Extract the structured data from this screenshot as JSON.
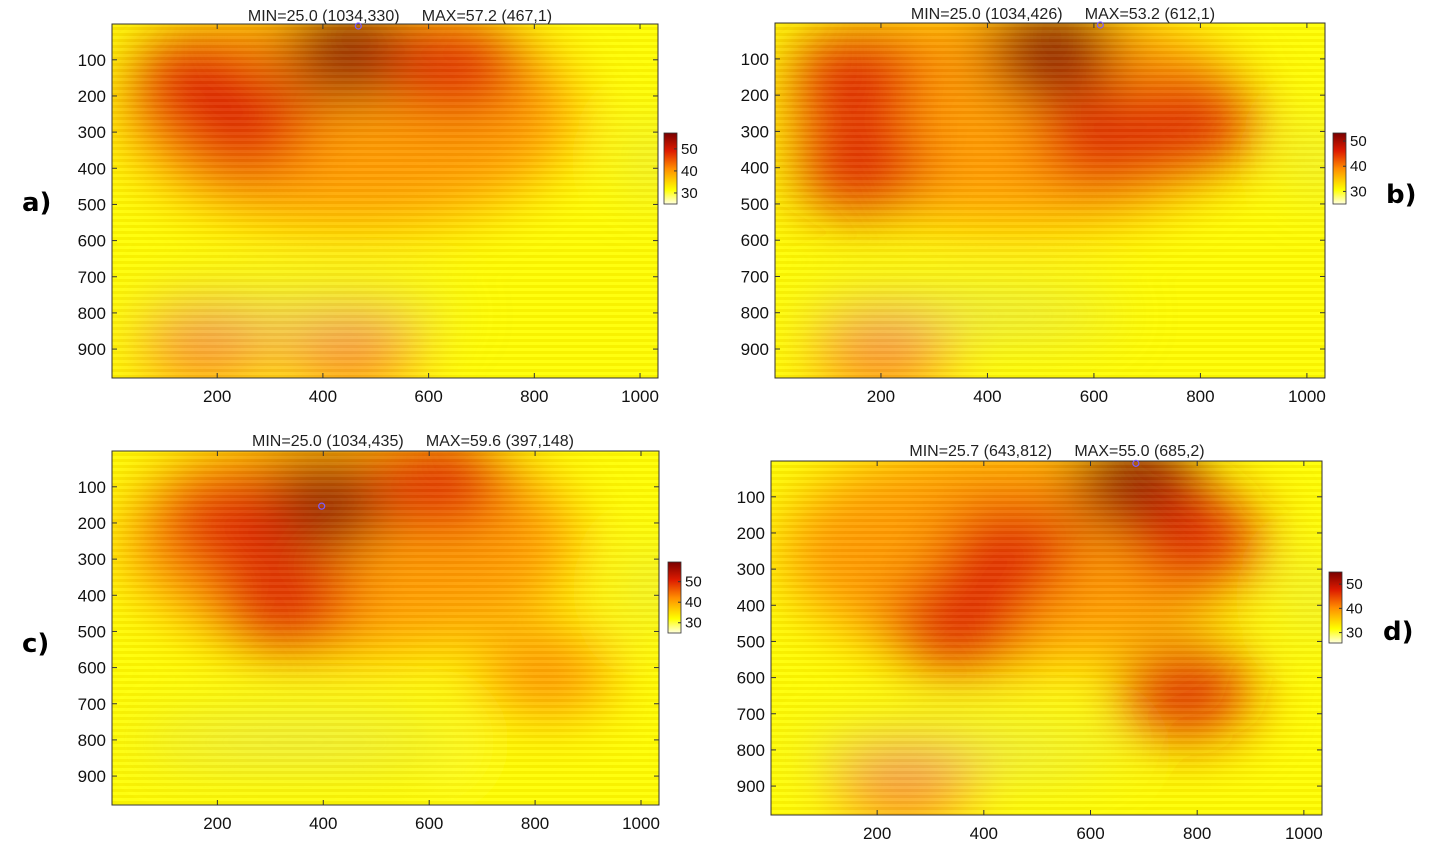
{
  "chart_data": [
    {
      "type": "heatmap",
      "panel": "a)",
      "title": "MIN=25.0 (1034,330)     MAX=57.2 (467,1)",
      "min": {
        "value": 25.0,
        "x": 1034,
        "y": 330
      },
      "max": {
        "value": 57.2,
        "x": 467,
        "y": 1
      },
      "xlim": [
        1,
        1034
      ],
      "ylim": [
        1,
        980
      ],
      "y_reversed": true,
      "x_ticks": [
        200,
        400,
        600,
        800,
        1000
      ],
      "y_ticks": [
        100,
        200,
        300,
        400,
        500,
        600,
        700,
        800,
        900
      ],
      "colorbar": {
        "ticks": [
          30,
          40,
          50
        ],
        "range": [
          25,
          57.2
        ],
        "colormap": "hot"
      },
      "hotspots": [
        {
          "x": 450,
          "y": 80,
          "value": 54
        },
        {
          "x": 250,
          "y": 280,
          "value": 48
        },
        {
          "x": 650,
          "y": 120,
          "value": 50
        },
        {
          "x": 160,
          "y": 160,
          "value": 46
        },
        {
          "x": 180,
          "y": 900,
          "value": 38
        },
        {
          "x": 450,
          "y": 920,
          "value": 37
        }
      ]
    },
    {
      "type": "heatmap",
      "panel": "b)",
      "title": "MIN=25.0 (1034,426)     MAX=53.2 (612,1)",
      "min": {
        "value": 25.0,
        "x": 1034,
        "y": 426
      },
      "max": {
        "value": 53.2,
        "x": 612,
        "y": 1
      },
      "xlim": [
        1,
        1034
      ],
      "ylim": [
        1,
        980
      ],
      "y_reversed": true,
      "x_ticks": [
        200,
        400,
        600,
        800,
        1000
      ],
      "y_ticks": [
        100,
        200,
        300,
        400,
        500,
        600,
        700,
        800,
        900
      ],
      "colorbar": {
        "ticks": [
          30,
          40,
          50
        ],
        "range": [
          25,
          53.2
        ],
        "colormap": "hot"
      },
      "hotspots": [
        {
          "x": 520,
          "y": 80,
          "value": 53
        },
        {
          "x": 620,
          "y": 320,
          "value": 48
        },
        {
          "x": 160,
          "y": 400,
          "value": 47
        },
        {
          "x": 780,
          "y": 280,
          "value": 44
        },
        {
          "x": 150,
          "y": 150,
          "value": 44
        },
        {
          "x": 200,
          "y": 930,
          "value": 40
        }
      ]
    },
    {
      "type": "heatmap",
      "panel": "c)",
      "title": "MIN=25.0 (1034,435)     MAX=59.6 (397,148)",
      "min": {
        "value": 25.0,
        "x": 1034,
        "y": 435
      },
      "max": {
        "value": 59.6,
        "x": 397,
        "y": 148
      },
      "xlim": [
        1,
        1034
      ],
      "ylim": [
        1,
        980
      ],
      "y_reversed": true,
      "x_ticks": [
        200,
        400,
        600,
        800,
        1000
      ],
      "y_ticks": [
        100,
        200,
        300,
        400,
        500,
        600,
        700,
        800,
        900
      ],
      "colorbar": {
        "ticks": [
          30,
          40,
          50
        ],
        "range": [
          25,
          59.6
        ],
        "colormap": "hot"
      },
      "hotspots": [
        {
          "x": 397,
          "y": 148,
          "value": 59
        },
        {
          "x": 220,
          "y": 200,
          "value": 50
        },
        {
          "x": 330,
          "y": 420,
          "value": 50
        },
        {
          "x": 620,
          "y": 90,
          "value": 48
        },
        {
          "x": 820,
          "y": 620,
          "value": 40
        },
        {
          "x": 780,
          "y": 900,
          "value": 34
        }
      ]
    },
    {
      "type": "heatmap",
      "panel": "d)",
      "title": "MIN=25.7 (643,812)     MAX=55.0 (685,2)",
      "min": {
        "value": 25.7,
        "x": 643,
        "y": 812
      },
      "max": {
        "value": 55.0,
        "x": 685,
        "y": 2
      },
      "xlim": [
        1,
        1034
      ],
      "ylim": [
        1,
        980
      ],
      "y_reversed": true,
      "x_ticks": [
        200,
        400,
        600,
        800,
        1000
      ],
      "y_ticks": [
        100,
        200,
        300,
        400,
        500,
        600,
        700,
        800,
        900
      ],
      "colorbar": {
        "ticks": [
          30,
          40,
          50
        ],
        "range": [
          25.7,
          55.0
        ],
        "colormap": "hot"
      },
      "hotspots": [
        {
          "x": 685,
          "y": 60,
          "value": 55
        },
        {
          "x": 450,
          "y": 250,
          "value": 49
        },
        {
          "x": 800,
          "y": 220,
          "value": 47
        },
        {
          "x": 350,
          "y": 450,
          "value": 45
        },
        {
          "x": 780,
          "y": 640,
          "value": 42
        },
        {
          "x": 250,
          "y": 900,
          "value": 36
        }
      ]
    }
  ],
  "colors": {
    "cold": "#c4c4c4",
    "low": "#ffff00",
    "mid": "#ff8c00",
    "high": "#dd1a00",
    "peak": "#7a0000"
  }
}
